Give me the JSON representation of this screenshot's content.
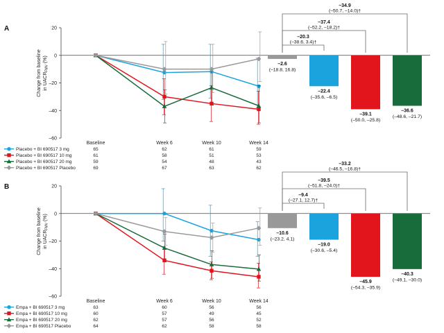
{
  "colors": {
    "bi_3mg": "#1aa3dd",
    "bi_10mg": "#e2141c",
    "bi_20mg": "#186b3a",
    "bi_placebo": "#999999",
    "axis": "#444444",
    "bracket": "#666666"
  },
  "chart_data": [
    {
      "panel_label": "A",
      "type": "line",
      "ylabel_line1": "Change from baseline",
      "ylabel_line2_pre": "in UACR",
      "ylabel_sub": "FMV",
      "ylabel_line2_post": " (%)",
      "ylim": [
        -60,
        20
      ],
      "yticks": [
        "20",
        "0",
        "–20",
        "–40",
        "–60"
      ],
      "categories": [
        "Baseline",
        "Week 6",
        "Week 10",
        "Week 14"
      ],
      "series": [
        {
          "name": "Placebo + BI 690517 3 mg",
          "color": "#1aa3dd",
          "marker": "circle",
          "values": [
            0,
            -12.5,
            -11.8,
            -22.4
          ],
          "ci_low": [
            0,
            -32,
            -31,
            -38
          ],
          "ci_high": [
            0,
            8,
            8,
            -2
          ],
          "n": [
            "65",
            "62",
            "61",
            "59"
          ]
        },
        {
          "name": "Placebo + BI 690517 10 mg",
          "color": "#e2141c",
          "marker": "square",
          "values": [
            0,
            -30,
            -35,
            -39.1
          ],
          "ci_low": [
            0,
            -43,
            -48,
            -50
          ],
          "ci_high": [
            0,
            -17,
            -22,
            -26
          ]
        },
        {
          "name": "Placebo + BI 690517 20 mg",
          "color": "#186b3a",
          "marker": "triangle",
          "values": [
            0,
            -37,
            -23.5,
            -36.6
          ],
          "ci_low": [
            0,
            -49,
            -36,
            -49
          ],
          "ci_high": [
            0,
            -25,
            -10,
            -22
          ]
        },
        {
          "name": "Placebo + BI 690517 Placebo",
          "color": "#999999",
          "marker": "diamond",
          "values": [
            0,
            -10,
            -10,
            -2.6
          ],
          "ci_low": [
            0,
            -28,
            -27,
            -19
          ],
          "ci_high": [
            0,
            10,
            8,
            17
          ]
        }
      ],
      "n_at_risk": [
        [
          "65",
          "62",
          "61",
          "59"
        ],
        [
          "61",
          "58",
          "51",
          "53"
        ],
        [
          "59",
          "54",
          "48",
          "43"
        ],
        [
          "69",
          "67",
          "63",
          "62"
        ]
      ],
      "bars": [
        {
          "value": -2.6,
          "label": "–2.6",
          "ci": "(–18.8, 16.8)",
          "color": "#999999"
        },
        {
          "value": -22.4,
          "label": "–22.4",
          "ci": "(–35.6, –6.5)",
          "color": "#1aa3dd"
        },
        {
          "value": -39.1,
          "label": "–39.1",
          "ci": "(–50.0, –25.8)",
          "color": "#e2141c"
        },
        {
          "value": -36.6,
          "label": "–36.6",
          "ci": "(–48.6, –21.7)",
          "color": "#186b3a"
        }
      ],
      "comparisons": [
        {
          "label": "–34.9",
          "ci": "(–50.7, –14.0)†",
          "to_bar": 3
        },
        {
          "label": "–37.4",
          "ci": "(–52.2, –18.2)†",
          "to_bar": 2
        },
        {
          "label": "–20.3",
          "ci": "(–38.6, 3.4)†",
          "to_bar": 1
        }
      ]
    },
    {
      "panel_label": "B",
      "type": "line",
      "ylabel_line1": "Change from baseline",
      "ylabel_line2_pre": "in UACR",
      "ylabel_sub": "FMV",
      "ylabel_line2_post": " (%)",
      "ylim": [
        -60,
        20
      ],
      "yticks": [
        "20",
        "0",
        "–20",
        "–40",
        "–60"
      ],
      "categories": [
        "Baseline",
        "Week 6",
        "Week 10",
        "Week 14"
      ],
      "series": [
        {
          "name": "Empa + BI 690517 3 mg",
          "color": "#1aa3dd",
          "marker": "circle",
          "values": [
            0,
            0,
            -12.5,
            -19
          ],
          "ci_low": [
            0,
            -20,
            -31,
            -31
          ],
          "ci_high": [
            0,
            18,
            6,
            -6
          ]
        },
        {
          "name": "Empa + BI 690517 10 mg",
          "color": "#e2141c",
          "marker": "square",
          "values": [
            0,
            -34,
            -41.5,
            -45.9
          ],
          "ci_low": [
            0,
            -44,
            -48,
            -54
          ],
          "ci_high": [
            0,
            -24,
            -35,
            -36
          ]
        },
        {
          "name": "Empa + BI 690517 20 mg",
          "color": "#186b3a",
          "marker": "triangle",
          "values": [
            0,
            -25,
            -37,
            -40.3
          ],
          "ci_low": [
            0,
            -35,
            -47,
            -49
          ],
          "ci_high": [
            0,
            -15,
            -27,
            -30
          ]
        },
        {
          "name": "Empa + BI 690517 Placebo",
          "color": "#999999",
          "marker": "diamond",
          "values": [
            0,
            -13,
            -17.5,
            -10.6
          ],
          "ci_low": [
            0,
            -23,
            -28,
            -23
          ],
          "ci_high": [
            0,
            -3,
            -7,
            4
          ]
        }
      ],
      "n_at_risk": [
        [
          "63",
          "60",
          "56",
          "56"
        ],
        [
          "60",
          "57",
          "49",
          "45"
        ],
        [
          "62",
          "57",
          "56",
          "52"
        ],
        [
          "64",
          "62",
          "58",
          "58"
        ]
      ],
      "bars": [
        {
          "value": -10.6,
          "label": "–10.6",
          "ci": "(–23.2, 4.1)",
          "color": "#999999"
        },
        {
          "value": -19.0,
          "label": "–19.0",
          "ci": "(–30.6, –5.4)",
          "color": "#1aa3dd"
        },
        {
          "value": -45.9,
          "label": "–45.9",
          "ci": "(–54.3, –35.9)",
          "color": "#e2141c"
        },
        {
          "value": -40.3,
          "label": "–40.3",
          "ci": "(–49.1, –30.0)",
          "color": "#186b3a"
        }
      ],
      "comparisons": [
        {
          "label": "–33.2",
          "ci": "(–46.5, –16.8)†",
          "to_bar": 3
        },
        {
          "label": "–39.5",
          "ci": "(–51.8, –24.0)†",
          "to_bar": 2
        },
        {
          "label": "–9.4",
          "ci": "(–27.1, 12.7)†",
          "to_bar": 1
        }
      ]
    }
  ]
}
